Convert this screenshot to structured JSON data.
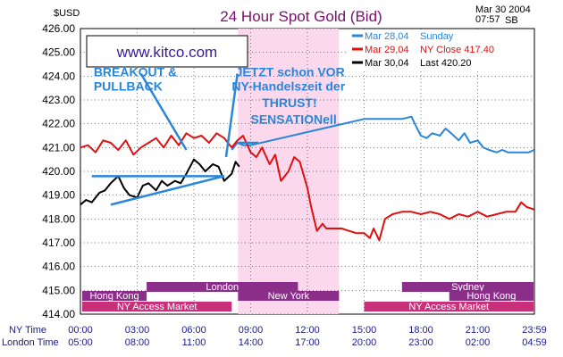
{
  "chart_data": {
    "type": "line",
    "title": "24 Hour Spot Gold (Bid)",
    "unit_label": "$USD",
    "date": "Mar 30 2004",
    "time": "07:57",
    "time_suffix": "SB",
    "brand": "www.kitco.com",
    "ylim": [
      414,
      426
    ],
    "y_ticks": [
      "426.00",
      "425.00",
      "424.00",
      "423.00",
      "422.00",
      "421.00",
      "420.00",
      "419.00",
      "418.00",
      "417.00",
      "416.00",
      "415.00",
      "414.00"
    ],
    "x_ticks_ny": [
      "00:00",
      "03:00",
      "06:00",
      "09:00",
      "12:00",
      "15:00",
      "18:00",
      "21:00",
      "23:59"
    ],
    "x_ticks_london": [
      "05:00",
      "08:00",
      "11:00",
      "14:00",
      "17:00",
      "20:00",
      "23:00",
      "02:00",
      "04:59"
    ],
    "ny_time_label": "NY Time",
    "london_time_label": "London Time",
    "xlim": [
      0,
      24
    ],
    "ny_trading_window": [
      8.33,
      13.67
    ],
    "sessions": [
      {
        "name": "Hong Kong",
        "start": 0,
        "end": 3.5,
        "row": 1,
        "color": "#8a2e8a"
      },
      {
        "name": "London",
        "start": 3.5,
        "end": 11.5,
        "row": 0,
        "color": "#8a2e8a"
      },
      {
        "name": "New York",
        "start": 8.33,
        "end": 13.67,
        "row": 1,
        "color": "#8a2e8a"
      },
      {
        "name": "NY Access Market",
        "start": 0,
        "end": 8.0,
        "row": 2,
        "color": "#c8307a"
      },
      {
        "name": "Sydney",
        "start": 17.0,
        "end": 24,
        "row": 0,
        "color": "#8a2e8a"
      },
      {
        "name": "Hong Kong",
        "start": 19.5,
        "end": 24,
        "row": 1,
        "color": "#8a2e8a"
      },
      {
        "name": "NY Access Market",
        "start": 15.0,
        "end": 24,
        "row": 2,
        "color": "#c8307a"
      }
    ],
    "series": [
      {
        "name": "Mar 28,04 Sunday",
        "legend_date": "Mar 28,04",
        "legend_text": "Sunday",
        "color": "#2a86d8",
        "x": [
          8.0,
          8.3,
          8.6,
          9.0,
          15.0,
          15.3,
          17.0,
          17.5,
          17.8,
          18.0,
          18.3,
          18.6,
          19.0,
          19.3,
          19.6,
          20.0,
          20.3,
          20.6,
          21.0,
          21.3,
          21.6,
          22.0,
          22.3,
          22.6,
          23.0,
          23.3,
          23.7,
          23.99
        ],
        "y": [
          420.9,
          421.2,
          421.1,
          421.1,
          422.2,
          422.2,
          422.2,
          422.3,
          421.8,
          421.5,
          421.4,
          421.6,
          421.5,
          421.8,
          421.6,
          421.3,
          421.6,
          421.2,
          421.3,
          421.0,
          420.9,
          420.8,
          420.9,
          420.8,
          420.8,
          420.8,
          420.8,
          420.9
        ]
      },
      {
        "name": "Mar 29,04 NY Close 417.40",
        "legend_date": "Mar 29,04",
        "legend_text": "NY  Close  417.40",
        "color": "#e01010",
        "x": [
          0.0,
          0.4,
          0.8,
          1.2,
          1.6,
          2.0,
          2.4,
          2.8,
          3.2,
          3.6,
          4.0,
          4.4,
          4.8,
          5.2,
          5.6,
          6.0,
          6.4,
          6.8,
          7.2,
          7.6,
          8.0,
          8.3,
          8.6,
          9.0,
          9.3,
          9.6,
          10.0,
          10.3,
          10.6,
          11.0,
          11.3,
          11.6,
          12.0,
          12.2,
          12.5,
          12.8,
          13.0,
          13.4,
          13.8,
          14.2,
          14.6,
          15.0,
          15.3,
          15.5,
          15.8,
          16.1,
          16.5,
          17.0,
          17.5,
          18.0,
          18.5,
          19.0,
          19.5,
          20.0,
          20.5,
          21.0,
          21.5,
          22.0,
          22.5,
          23.0,
          23.3,
          23.6,
          23.99
        ],
        "y": [
          421.0,
          421.1,
          420.8,
          421.3,
          421.2,
          420.9,
          421.3,
          420.7,
          421.0,
          421.2,
          421.4,
          421.0,
          421.5,
          421.1,
          421.6,
          421.4,
          421.5,
          421.2,
          421.6,
          421.4,
          421.0,
          421.3,
          421.5,
          420.8,
          420.6,
          421.0,
          420.3,
          420.7,
          419.6,
          420.0,
          420.6,
          420.4,
          419.3,
          418.5,
          417.5,
          417.8,
          417.6,
          417.6,
          417.6,
          417.5,
          417.4,
          417.4,
          417.2,
          417.6,
          417.1,
          418.0,
          418.2,
          418.3,
          418.3,
          418.2,
          418.3,
          418.2,
          418.0,
          418.2,
          418.1,
          418.3,
          418.1,
          418.2,
          418.3,
          418.3,
          418.7,
          418.5,
          418.4
        ]
      },
      {
        "name": "Mar 30,04 Last 420.20",
        "legend_date": "Mar 30,04",
        "legend_text": "Last  420.20",
        "color": "#000000",
        "x": [
          0.0,
          0.3,
          0.6,
          1.0,
          1.3,
          1.6,
          2.0,
          2.3,
          2.6,
          3.0,
          3.3,
          3.6,
          4.0,
          4.3,
          4.6,
          5.0,
          5.3,
          5.6,
          6.0,
          6.3,
          6.6,
          7.0,
          7.3,
          7.6,
          8.0,
          8.2,
          8.4
        ],
        "y": [
          418.6,
          418.8,
          418.7,
          419.1,
          419.2,
          419.5,
          419.8,
          419.3,
          419.0,
          418.9,
          419.4,
          419.5,
          419.2,
          419.6,
          419.4,
          419.6,
          419.5,
          419.9,
          420.5,
          420.3,
          420.0,
          420.3,
          420.2,
          419.6,
          419.9,
          420.4,
          420.2
        ]
      }
    ],
    "annotations": [
      {
        "text": "BREAKOUT &",
        "x": 0.7,
        "y": 424.0
      },
      {
        "text": "PULLBACK",
        "x": 0.7,
        "y": 423.4
      },
      {
        "text": "JETZT schon VOR",
        "x": 8.2,
        "y": 424.0
      },
      {
        "text": "NY-Handelszeit der",
        "x": 8.0,
        "y": 423.4
      },
      {
        "text": "THRUST!",
        "x": 9.6,
        "y": 422.7
      },
      {
        "text": "SENSATIONell",
        "x": 9.0,
        "y": 422.0
      }
    ],
    "trend_lines": [
      {
        "x1": 0.6,
        "y1": 419.8,
        "x2": 7.6,
        "y2": 419.8
      },
      {
        "x1": 1.6,
        "y1": 418.6,
        "x2": 7.6,
        "y2": 419.8
      },
      {
        "x1": 3.2,
        "y1": 424.1,
        "x2": 5.6,
        "y2": 420.9
      },
      {
        "x1": 8.3,
        "y1": 424.1,
        "x2": 7.7,
        "y2": 420.6
      },
      {
        "x1": 8.3,
        "y1": 421.2,
        "x2": 9.4,
        "y2": 421.2
      }
    ]
  }
}
